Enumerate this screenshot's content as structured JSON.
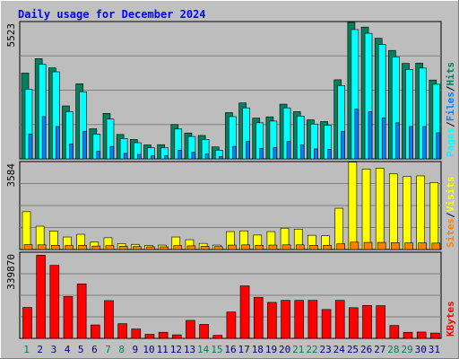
{
  "title": "Daily usage for December 2024",
  "colors": {
    "background": "#c0c0c0",
    "panel": "#bdbdbd",
    "title_text": "#0000ff",
    "hits": "#00805c",
    "files": "#0080ff",
    "pages": "#00ffff",
    "visits": "#ffff00",
    "sites": "#ff8000",
    "kbytes": "#ff0000",
    "weekend_label": "#00805c",
    "weekday_label": "#000080"
  },
  "chart_data": [
    {
      "type": "bar",
      "panel": "hits-files-pages",
      "ymax_label": "5523",
      "ylim": [
        0,
        5523
      ],
      "legend": [
        "Pages",
        "/",
        "Files",
        "/",
        "Hits"
      ],
      "categories": [
        "1",
        "2",
        "3",
        "4",
        "5",
        "6",
        "7",
        "8",
        "9",
        "10",
        "11",
        "12",
        "13",
        "14",
        "15",
        "16",
        "17",
        "18",
        "19",
        "20",
        "21",
        "22",
        "23",
        "24",
        "25",
        "26",
        "27",
        "28",
        "29",
        "30",
        "31"
      ],
      "series": [
        {
          "name": "Hits",
          "values": [
            3450,
            4030,
            3660,
            2130,
            3020,
            1210,
            1830,
            980,
            780,
            560,
            570,
            1380,
            1040,
            940,
            480,
            1860,
            2250,
            1640,
            1690,
            2200,
            1900,
            1570,
            1500,
            3180,
            5490,
            5300,
            4850,
            4360,
            3840,
            3850,
            3170
          ]
        },
        {
          "name": "Files",
          "values": [
            2800,
            3800,
            3500,
            1900,
            2700,
            1000,
            1600,
            820,
            650,
            450,
            450,
            1200,
            900,
            780,
            350,
            1700,
            2050,
            1450,
            1520,
            2050,
            1720,
            1400,
            1350,
            2950,
            5200,
            5050,
            4600,
            4100,
            3600,
            3650,
            3000
          ]
        },
        {
          "name": "Pages",
          "values": [
            1000,
            1700,
            1300,
            600,
            1100,
            300,
            500,
            220,
            180,
            120,
            130,
            350,
            260,
            200,
            90,
            500,
            700,
            420,
            450,
            700,
            560,
            400,
            380,
            1100,
            2000,
            1900,
            1650,
            1450,
            1300,
            1300,
            1050
          ]
        }
      ]
    },
    {
      "type": "bar",
      "panel": "visits-sites",
      "ymax_label": "3584",
      "ylim": [
        0,
        3584
      ],
      "legend": [
        "Sites",
        "/",
        "Visits"
      ],
      "categories": [
        "1",
        "2",
        "3",
        "4",
        "5",
        "6",
        "7",
        "8",
        "9",
        "10",
        "11",
        "12",
        "13",
        "14",
        "15",
        "16",
        "17",
        "18",
        "19",
        "20",
        "21",
        "22",
        "23",
        "24",
        "25",
        "26",
        "27",
        "28",
        "29",
        "30",
        "31"
      ],
      "series": [
        {
          "name": "Visits",
          "values": [
            1540,
            950,
            750,
            510,
            620,
            300,
            480,
            240,
            210,
            170,
            180,
            510,
            400,
            250,
            180,
            730,
            760,
            590,
            730,
            870,
            830,
            580,
            560,
            1680,
            3560,
            3280,
            3310,
            3080,
            2970,
            3000,
            2730
          ]
        },
        {
          "name": "Sites",
          "values": [
            200,
            190,
            170,
            160,
            170,
            140,
            160,
            130,
            120,
            110,
            110,
            160,
            150,
            130,
            120,
            180,
            190,
            170,
            180,
            190,
            190,
            170,
            170,
            230,
            300,
            290,
            290,
            280,
            270,
            270,
            260
          ]
        }
      ]
    },
    {
      "type": "bar",
      "panel": "kbytes",
      "ymax_label": "339870",
      "ylim": [
        0,
        339870
      ],
      "legend": [
        "KBytes"
      ],
      "categories": [
        "1",
        "2",
        "3",
        "4",
        "5",
        "6",
        "7",
        "8",
        "9",
        "10",
        "11",
        "12",
        "13",
        "14",
        "15",
        "16",
        "17",
        "18",
        "19",
        "20",
        "21",
        "22",
        "23",
        "24",
        "25",
        "26",
        "27",
        "28",
        "29",
        "30",
        "31"
      ],
      "series": [
        {
          "name": "KBytes",
          "values": [
            122000,
            328000,
            288000,
            165000,
            215000,
            53000,
            149000,
            58000,
            37000,
            16000,
            24000,
            14000,
            71000,
            55000,
            12000,
            104000,
            207000,
            162000,
            142000,
            150000,
            150000,
            150000,
            114000,
            150000,
            121000,
            130000,
            129000,
            51000,
            24000,
            25000,
            21000
          ]
        }
      ]
    }
  ],
  "x_labels": [
    {
      "text": "1",
      "weekend": true
    },
    {
      "text": "2",
      "weekend": false
    },
    {
      "text": "3",
      "weekend": false
    },
    {
      "text": "4",
      "weekend": false
    },
    {
      "text": "5",
      "weekend": false
    },
    {
      "text": "6",
      "weekend": false
    },
    {
      "text": "7",
      "weekend": true
    },
    {
      "text": "8",
      "weekend": true
    },
    {
      "text": "9",
      "weekend": false
    },
    {
      "text": "10",
      "weekend": false
    },
    {
      "text": "11",
      "weekend": false
    },
    {
      "text": "12",
      "weekend": false
    },
    {
      "text": "13",
      "weekend": false
    },
    {
      "text": "14",
      "weekend": true
    },
    {
      "text": "15",
      "weekend": true
    },
    {
      "text": "16",
      "weekend": false
    },
    {
      "text": "17",
      "weekend": false
    },
    {
      "text": "18",
      "weekend": false
    },
    {
      "text": "19",
      "weekend": false
    },
    {
      "text": "20",
      "weekend": false
    },
    {
      "text": "21",
      "weekend": true
    },
    {
      "text": "22",
      "weekend": true
    },
    {
      "text": "23",
      "weekend": false
    },
    {
      "text": "24",
      "weekend": false
    },
    {
      "text": "25",
      "weekend": false
    },
    {
      "text": "26",
      "weekend": false
    },
    {
      "text": "27",
      "weekend": false
    },
    {
      "text": "28",
      "weekend": true
    },
    {
      "text": "29",
      "weekend": true
    },
    {
      "text": "30",
      "weekend": false
    },
    {
      "text": "31",
      "weekend": false
    }
  ]
}
